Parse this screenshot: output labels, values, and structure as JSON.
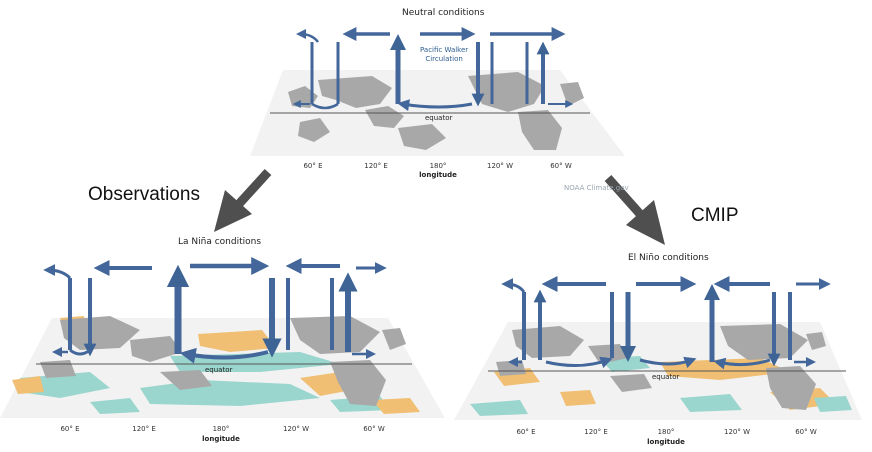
{
  "colors": {
    "circulation_blue": "#43679a",
    "land_gray": "#a7a7a7",
    "ocean_white": "#f1f1f1",
    "warm_anomaly": "#f0bf73",
    "cool_anomaly": "#9ad6ce",
    "arrow_gray": "#4f4f4f"
  },
  "labels": {
    "observations": "Observations",
    "cmip": "CMIP"
  },
  "neutral_panel": {
    "title": "Neutral conditions",
    "walker_label_1": "Pacific Walker",
    "walker_label_2": "Circulation",
    "equator": "equator",
    "longitude": "longitude",
    "ticks": [
      "60° E",
      "120° E",
      "180°",
      "120° W",
      "60° W"
    ],
    "credit": "NOAA Climate.gov"
  },
  "la_nina_panel": {
    "title": "La Niña conditions",
    "equator": "equator",
    "longitude": "longitude",
    "ticks": [
      "60° E",
      "120° E",
      "180°",
      "120° W",
      "60° W"
    ]
  },
  "el_nino_panel": {
    "title": "El Niño conditions",
    "equator": "equator",
    "longitude": "longitude",
    "ticks": [
      "60° E",
      "120° E",
      "180°",
      "120° W",
      "60° W"
    ]
  }
}
